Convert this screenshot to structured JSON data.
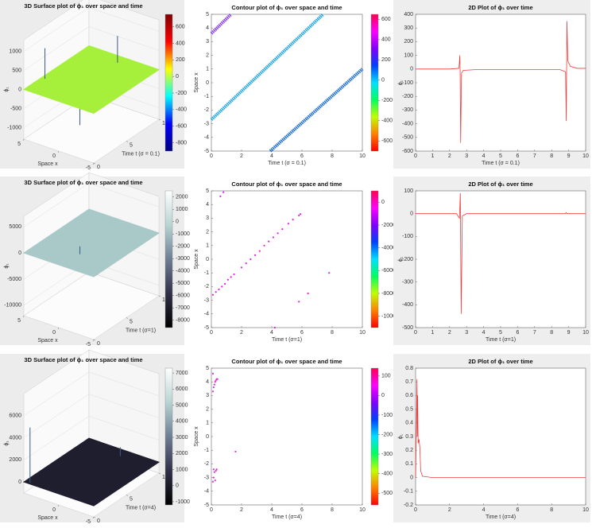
{
  "chart_data": [
    {
      "type": "surface",
      "title": "3D Surface plot of ϕ₁ over space and time",
      "xlabel": "Space x",
      "ylabel": "Time t (σ = 0.1)",
      "zlabel": "ϕ₁",
      "xlim": [
        -5,
        5
      ],
      "xticks": [
        5,
        0,
        -5
      ],
      "ylim": [
        0,
        10
      ],
      "yticks": [
        0,
        5,
        10
      ],
      "zlim": [
        -1300,
        1300
      ],
      "zticks": [
        1000,
        500,
        0,
        -500,
        -1000
      ],
      "plane": 0,
      "color": "#a6f03c",
      "spikes": {
        "x": [
          4.5,
          -0.5,
          -0.1
        ],
        "y": [
          2.7,
          2.7,
          8.9
        ],
        "z": [
          800,
          -900,
          700
        ]
      },
      "colorbar": {
        "lim": [
          -900,
          750
        ],
        "ticks": [
          600,
          400,
          200,
          0,
          -200,
          -400,
          -600,
          -800
        ],
        "colors": [
          "#800000",
          "#ff0000",
          "#ffff00",
          "#00ffff",
          "#0000ff",
          "#000080"
        ]
      }
    },
    {
      "type": "contour",
      "title": "Contour plot of ϕ₁ over space and time",
      "xlabel": "Time t (σ = 0.1)",
      "ylabel": "Space x",
      "xlim": [
        0,
        10
      ],
      "xticks": [
        0,
        2,
        4,
        6,
        8,
        10
      ],
      "ylim": [
        -5,
        5
      ],
      "yticks": [
        5,
        4,
        3,
        2,
        1,
        0,
        -1,
        -2,
        -3,
        -4,
        -5
      ],
      "lines": [
        {
          "x": [
            0,
            1.3
          ],
          "y": [
            3.6,
            5
          ],
          "color": "#8a3cf0"
        },
        {
          "x": [
            0,
            7.4
          ],
          "y": [
            -2.7,
            5
          ],
          "color": "#22a6e6"
        },
        {
          "x": [
            3.9,
            10
          ],
          "y": [
            -5,
            1
          ],
          "color": "#1e6fd0"
        }
      ],
      "colorbar": {
        "lim": [
          -700,
          650
        ],
        "ticks": [
          600,
          400,
          200,
          0,
          -200,
          -400,
          -600
        ],
        "colors": [
          "#ff0050",
          "#ff00ff",
          "#8000ff",
          "#0040ff",
          "#00e0ff",
          "#00ff60",
          "#c0ff00",
          "#ff8000",
          "#ff0000"
        ]
      }
    },
    {
      "type": "line",
      "title": "2D Plot of ϕ₁ over time",
      "xlabel": "Time t (σ = 0.1)",
      "ylabel": "ϕ₁",
      "color": "#f03c3c",
      "xlim": [
        0,
        10
      ],
      "xticks": [
        0,
        1,
        2,
        3,
        4,
        5,
        6,
        7,
        8,
        9,
        10
      ],
      "ylim": [
        -600,
        400
      ],
      "yticks": [
        400,
        300,
        200,
        100,
        0,
        -100,
        -200,
        -300,
        -400,
        -500,
        -600
      ],
      "x": [
        0,
        2.0,
        2.55,
        2.6,
        2.62,
        2.65,
        2.7,
        2.8,
        3.5,
        6,
        8.5,
        8.82,
        8.86,
        8.9,
        8.95,
        9.1,
        9.5,
        10
      ],
      "values": [
        0,
        0,
        5,
        100,
        -20,
        -540,
        -30,
        -10,
        -5,
        -5,
        -5,
        -20,
        -380,
        350,
        60,
        20,
        5,
        5
      ]
    },
    {
      "type": "surface",
      "title": "3D Surface plot of ϕ₁ over space and time",
      "xlabel": "Space x",
      "ylabel": "Time t (σ=1)",
      "zlabel": "ϕ₁",
      "xlim": [
        -5,
        5
      ],
      "xticks": [
        5,
        0,
        -5
      ],
      "ylim": [
        0,
        10
      ],
      "yticks": [
        0,
        5,
        10
      ],
      "zlim": [
        -12000,
        7000
      ],
      "zticks": [
        5000,
        0,
        -5000,
        -10000
      ],
      "plane": 0,
      "color": "#a9c9c9",
      "spikes": {
        "x": [
          -0.5,
          -0.4
        ],
        "y": [
          2.7,
          2.8
        ],
        "z": [
          1500,
          -1200
        ]
      },
      "colorbar": {
        "lim": [
          -8600,
          2500
        ],
        "ticks": [
          2000,
          1000,
          0,
          -1000,
          -2000,
          -3000,
          -4000,
          -5000,
          -6000,
          -7000,
          -8000
        ],
        "colors": [
          "#ffffff",
          "#b8d4d4",
          "#6e7e94",
          "#303048",
          "#000000"
        ]
      }
    },
    {
      "type": "contour",
      "title": "Contour plot of ϕ₁ over space and time",
      "xlabel": "Time t (σ=1)",
      "ylabel": "Space x",
      "xlim": [
        0,
        10
      ],
      "xticks": [
        0,
        2,
        4,
        6,
        8,
        10
      ],
      "ylim": [
        -5,
        5
      ],
      "yticks": [
        5,
        4,
        3,
        2,
        1,
        0,
        -1,
        -2,
        -3,
        -4,
        -5
      ],
      "points": {
        "color": "#e020e0",
        "x": [
          0.1,
          0.3,
          0.5,
          0.7,
          0.9,
          1.1,
          1.3,
          1.5,
          2.0,
          2.3,
          2.6,
          2.9,
          3.2,
          3.5,
          3.8,
          4.1,
          4.4,
          4.7,
          5.1,
          5.4,
          5.8,
          5.9,
          7.8,
          5.8,
          6.4,
          0.6,
          0.8,
          4.2
        ],
        "y": [
          -2.6,
          -2.4,
          -2.2,
          -2.0,
          -1.8,
          -1.5,
          -1.3,
          -1.1,
          -0.6,
          -0.3,
          0.0,
          0.3,
          0.6,
          1.0,
          1.3,
          1.6,
          1.9,
          2.2,
          2.6,
          2.9,
          3.2,
          3.3,
          -1.0,
          -3.1,
          -2.5,
          4.6,
          4.9,
          -5
        ]
      },
      "colorbar": {
        "lim": [
          -11000,
          1000
        ],
        "ticks": [
          0,
          -2000,
          -4000,
          -6000,
          -8000,
          -10000
        ],
        "colors": [
          "#ff0050",
          "#ff00ff",
          "#8000ff",
          "#0040ff",
          "#00e0ff",
          "#00ff60",
          "#c0ff00",
          "#ff8000",
          "#ff0000"
        ]
      }
    },
    {
      "type": "line",
      "title": "2D Plot of ϕ₁ over time",
      "xlabel": "Time t (σ=1)",
      "ylabel": "ϕ₁",
      "color": "#f03c3c",
      "xlim": [
        0,
        10
      ],
      "xticks": [
        0,
        1,
        2,
        3,
        4,
        5,
        6,
        7,
        8,
        9,
        10
      ],
      "ylim": [
        -500,
        100
      ],
      "yticks": [
        100,
        0,
        -100,
        -200,
        -300,
        -400,
        -500
      ],
      "x": [
        0,
        2.4,
        2.58,
        2.63,
        2.68,
        2.75,
        3,
        8.8,
        8.85,
        8.9,
        10
      ],
      "values": [
        0,
        0,
        -20,
        90,
        -440,
        -10,
        0,
        0,
        5,
        0,
        0
      ]
    },
    {
      "type": "surface",
      "title": "3D Surface plot of ϕ₁ over space and time",
      "xlabel": "Space x",
      "ylabel": "Time t (σ=4)",
      "zlabel": "ϕ₁",
      "xlim": [
        -5,
        5
      ],
      "xticks": [
        0,
        -5
      ],
      "ylim": [
        0,
        10
      ],
      "yticks": [
        0,
        5,
        10
      ],
      "zlim": [
        -1000,
        8000
      ],
      "zticks": [
        6000,
        4000,
        2000,
        0
      ],
      "plane": 0,
      "color": "#1e1e2e",
      "spikes": {
        "x": [
          4.3,
          -0.5
        ],
        "y": [
          0.2,
          8.9
        ],
        "z": [
          5000,
          800
        ]
      },
      "colorbar": {
        "lim": [
          -1200,
          7300
        ],
        "ticks": [
          7000,
          6000,
          5000,
          4000,
          3000,
          2000,
          1000,
          0,
          -1000
        ],
        "colors": [
          "#ffffff",
          "#b8d4d4",
          "#6e7e94",
          "#303048",
          "#000000"
        ]
      }
    },
    {
      "type": "contour",
      "title": "Contour plot of ϕ₁ over space and time",
      "xlabel": "Time t (σ=4)",
      "ylabel": "Space x",
      "xlim": [
        0,
        10
      ],
      "xticks": [
        0,
        2,
        4,
        6,
        8,
        10
      ],
      "ylim": [
        -5,
        5
      ],
      "yticks": [
        5,
        4,
        3,
        2,
        1,
        0,
        -1,
        -2,
        -3,
        -4,
        -5
      ],
      "points": {
        "color": "#e030d0",
        "x": [
          0.1,
          0.15,
          0.2,
          0.25,
          0.3,
          0.35,
          0.4,
          0.1,
          0.15,
          0.2,
          0.3,
          0.35,
          0.15,
          0.25,
          0.1,
          1.6
        ],
        "y": [
          3.3,
          3.6,
          3.8,
          4.0,
          4.1,
          4.2,
          4.2,
          4.6,
          -2.4,
          -2.6,
          -2.5,
          -2.4,
          -3.0,
          -3.2,
          -3.3,
          -1.1
        ]
      },
      "colorbar": {
        "lim": [
          -560,
          140
        ],
        "ticks": [
          100,
          0,
          -100,
          -200,
          -300,
          -400,
          -500
        ],
        "colors": [
          "#ff0050",
          "#ff00ff",
          "#8000ff",
          "#0040ff",
          "#00e0ff",
          "#00ff60",
          "#c0ff00",
          "#ff8000",
          "#ff0000"
        ]
      }
    },
    {
      "type": "line",
      "title": "2D Plot of ϕ₁ over time",
      "xlabel": "Time t (σ=4)",
      "ylabel": "ϕ₁",
      "color": "#f03c3c",
      "xlim": [
        0,
        10
      ],
      "xticks": [
        0,
        2,
        4,
        6,
        8,
        10
      ],
      "ylim": [
        -0.2,
        0.8
      ],
      "yticks": [
        0.8,
        0.7,
        0.6,
        0.5,
        0.4,
        0.3,
        0.2,
        0.1,
        0,
        -0.1,
        -0.2
      ],
      "x": [
        0,
        0.05,
        0.08,
        0.1,
        0.12,
        0.15,
        0.2,
        0.25,
        0.3,
        0.4,
        1,
        10
      ],
      "values": [
        0,
        0.4,
        0.72,
        0.3,
        0.6,
        0.25,
        0.28,
        0.22,
        0.05,
        0.01,
        0,
        0
      ]
    }
  ]
}
